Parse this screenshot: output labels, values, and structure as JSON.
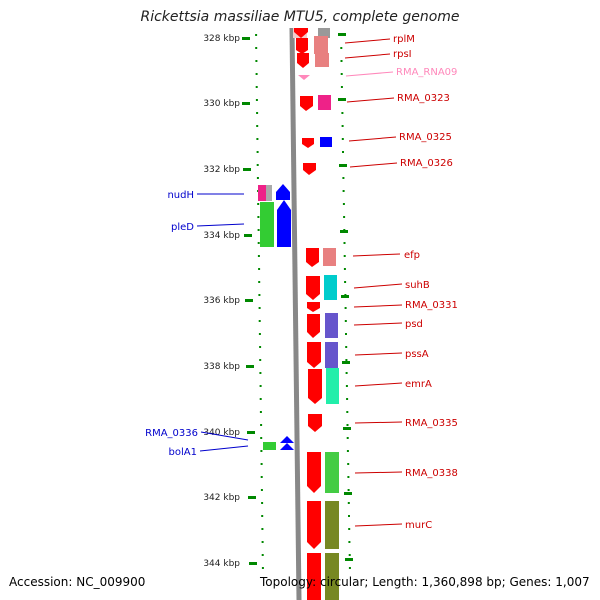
{
  "title": "Rickettsia massiliae MTU5, complete genome",
  "footer": {
    "accession": "Accession: NC_009900",
    "topology": "Topology: circular; Length: 1,360,898 bp; Genes: 1,007"
  },
  "colors": {
    "forward": "#0000ff",
    "reverse": "#ff0000",
    "rna": "#ff99cc",
    "tick": "#008800",
    "backbone": "#888888"
  },
  "scale": {
    "unit": "kbp",
    "ticks": [
      "328 kbp",
      "330 kbp",
      "332 kbp",
      "334 kbp",
      "336 kbp",
      "338 kbp",
      "340 kbp",
      "342 kbp",
      "344 kbp"
    ]
  },
  "labels_left": [
    {
      "text": "nudH",
      "color": "#0000cc"
    },
    {
      "text": "pleD",
      "color": "#0000cc"
    },
    {
      "text": "RMA_0336",
      "color": "#0000cc"
    },
    {
      "text": "bolA1",
      "color": "#0000cc"
    }
  ],
  "labels_right": [
    {
      "text": "rplM",
      "color": "#cc0000"
    },
    {
      "text": "rpsI",
      "color": "#cc0000"
    },
    {
      "text": "RMA_RNA09",
      "color": "#ff88bb"
    },
    {
      "text": "RMA_0323",
      "color": "#cc0000"
    },
    {
      "text": "RMA_0325",
      "color": "#cc0000"
    },
    {
      "text": "RMA_0326",
      "color": "#cc0000"
    },
    {
      "text": "efp",
      "color": "#cc0000"
    },
    {
      "text": "suhB",
      "color": "#cc0000"
    },
    {
      "text": "RMA_0331",
      "color": "#cc0000"
    },
    {
      "text": "psd",
      "color": "#cc0000"
    },
    {
      "text": "pssA",
      "color": "#cc0000"
    },
    {
      "text": "emrA",
      "color": "#cc0000"
    },
    {
      "text": "RMA_0335",
      "color": "#cc0000"
    },
    {
      "text": "RMA_0338",
      "color": "#cc0000"
    },
    {
      "text": "murC",
      "color": "#cc0000"
    }
  ]
}
